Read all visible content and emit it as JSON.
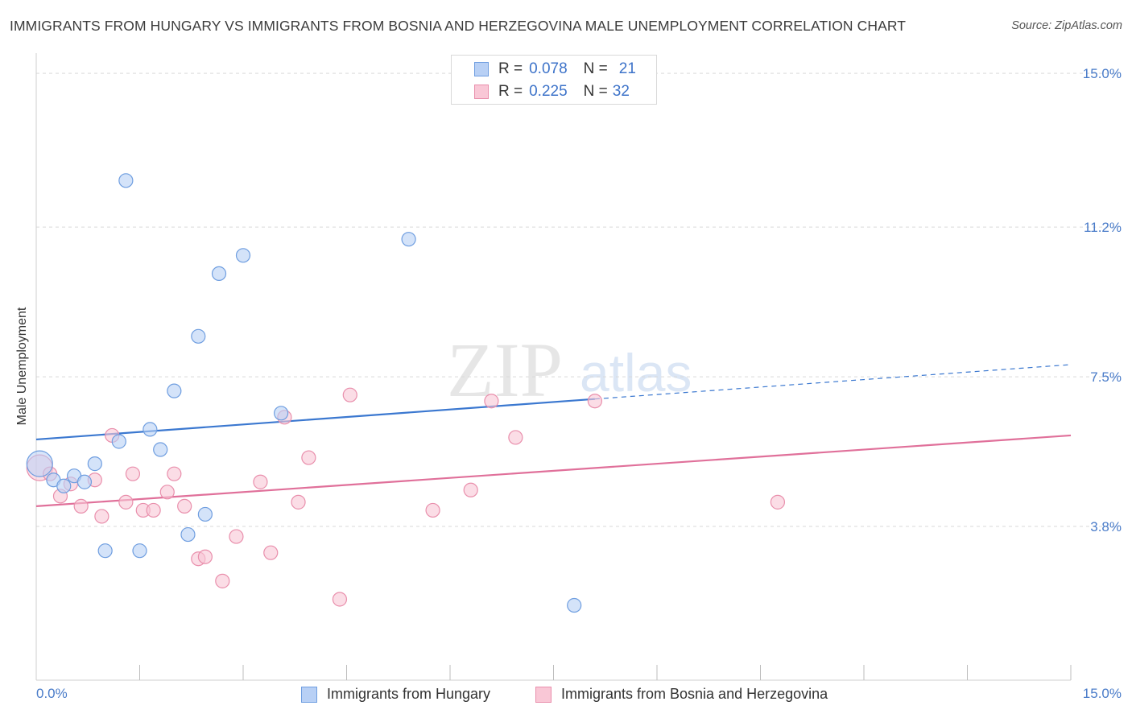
{
  "title": "IMMIGRANTS FROM HUNGARY VS IMMIGRANTS FROM BOSNIA AND HERZEGOVINA MALE UNEMPLOYMENT CORRELATION CHART",
  "source": "Source: ZipAtlas.com",
  "watermark": {
    "zip": "ZIP",
    "atlas": "atlas"
  },
  "legend": [
    {
      "r_label": "R =",
      "r_value": "0.078",
      "n_label": "N =",
      "n_value": "21"
    },
    {
      "r_label": "R =",
      "r_value": "0.225",
      "n_label": "N =",
      "n_value": "32"
    }
  ],
  "colors": {
    "hungary_fill": "#b8d0f5",
    "hungary_stroke": "#6f9ee0",
    "hungary_line": "#3b78d0",
    "bosnia_fill": "#f9c7d6",
    "bosnia_stroke": "#e98fac",
    "bosnia_line": "#e0709a",
    "tick_text": "#4a7cc9",
    "grid": "#d9d9d9"
  },
  "chart_data": {
    "type": "scatter",
    "title": "IMMIGRANTS FROM HUNGARY VS IMMIGRANTS FROM BOSNIA AND HERZEGOVINA MALE UNEMPLOYMENT CORRELATION CHART",
    "xlabel": "",
    "ylabel": "Male Unemployment",
    "xlim": [
      0,
      15
    ],
    "ylim": [
      0,
      15.5
    ],
    "x_tick_labels": [
      "0.0%",
      "15.0%"
    ],
    "y_ticks": [
      3.8,
      7.5,
      11.2,
      15.0
    ],
    "y_tick_labels": [
      "3.8%",
      "7.5%",
      "11.2%",
      "15.0%"
    ],
    "grid": true,
    "legend_position": "top-center",
    "series": [
      {
        "name": "Immigrants from Hungary",
        "points": [
          [
            0.05,
            5.35
          ],
          [
            0.25,
            4.95
          ],
          [
            0.4,
            4.8
          ],
          [
            0.55,
            5.05
          ],
          [
            0.7,
            4.9
          ],
          [
            0.85,
            5.35
          ],
          [
            1.0,
            3.2
          ],
          [
            1.2,
            5.9
          ],
          [
            1.3,
            12.35
          ],
          [
            1.5,
            3.2
          ],
          [
            1.65,
            6.2
          ],
          [
            1.8,
            5.7
          ],
          [
            2.0,
            7.15
          ],
          [
            2.2,
            3.6
          ],
          [
            2.35,
            8.5
          ],
          [
            2.45,
            4.1
          ],
          [
            2.65,
            10.05
          ],
          [
            3.0,
            10.5
          ],
          [
            3.55,
            6.6
          ],
          [
            5.4,
            10.9
          ],
          [
            7.8,
            1.85
          ]
        ],
        "trend": {
          "x": [
            0,
            8.1
          ],
          "y": [
            5.95,
            6.95
          ],
          "dashed_x": [
            8.1,
            15
          ],
          "dashed_y": [
            6.95,
            7.8
          ]
        }
      },
      {
        "name": "Immigrants from Bosnia and Herzegovina",
        "points": [
          [
            0.05,
            5.25
          ],
          [
            0.2,
            5.1
          ],
          [
            0.35,
            4.55
          ],
          [
            0.5,
            4.85
          ],
          [
            0.65,
            4.3
          ],
          [
            0.85,
            4.95
          ],
          [
            0.95,
            4.05
          ],
          [
            1.1,
            6.05
          ],
          [
            1.3,
            4.4
          ],
          [
            1.4,
            5.1
          ],
          [
            1.55,
            4.2
          ],
          [
            1.7,
            4.2
          ],
          [
            1.9,
            4.65
          ],
          [
            2.0,
            5.1
          ],
          [
            2.15,
            4.3
          ],
          [
            2.35,
            3.0
          ],
          [
            2.45,
            3.05
          ],
          [
            2.7,
            2.45
          ],
          [
            2.9,
            3.55
          ],
          [
            3.25,
            4.9
          ],
          [
            3.4,
            3.15
          ],
          [
            3.6,
            6.5
          ],
          [
            3.8,
            4.4
          ],
          [
            3.95,
            5.5
          ],
          [
            4.4,
            2.0
          ],
          [
            4.55,
            7.05
          ],
          [
            5.75,
            4.2
          ],
          [
            6.3,
            4.7
          ],
          [
            6.6,
            6.9
          ],
          [
            6.95,
            6.0
          ],
          [
            8.1,
            6.9
          ],
          [
            10.75,
            4.4
          ]
        ],
        "trend": {
          "x": [
            0,
            15
          ],
          "y": [
            4.3,
            6.05
          ]
        }
      }
    ]
  }
}
